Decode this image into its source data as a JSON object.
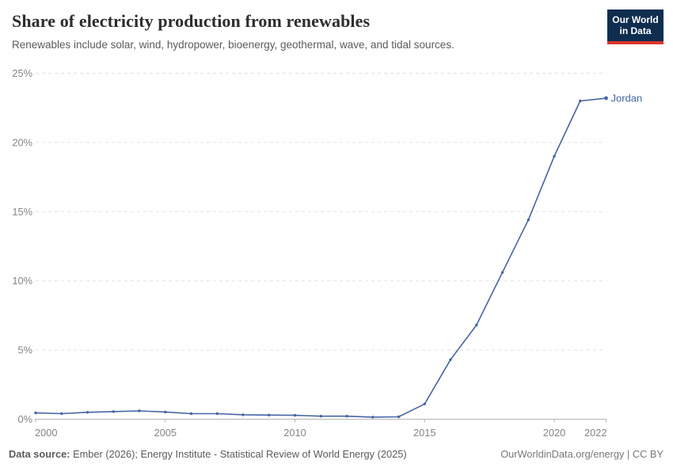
{
  "header": {
    "title": "Share of electricity production from renewables",
    "subtitle": "Renewables include solar, wind, hydropower, bioenergy, geothermal, wave, and tidal sources.",
    "logo": {
      "line1": "Our World",
      "line2": "in Data",
      "bg_color": "#0f2d4f",
      "stripe_color": "#dc352b"
    }
  },
  "chart_data": {
    "type": "line",
    "title": "Share of electricity production from renewables",
    "xlabel": "",
    "ylabel": "",
    "x": [
      2000,
      2001,
      2002,
      2003,
      2004,
      2005,
      2006,
      2007,
      2008,
      2009,
      2010,
      2011,
      2012,
      2013,
      2014,
      2015,
      2016,
      2017,
      2018,
      2019,
      2020,
      2021,
      2022
    ],
    "series": [
      {
        "name": "Jordan",
        "color": "#4664a4",
        "values": [
          0.45,
          0.4,
          0.5,
          0.55,
          0.6,
          0.52,
          0.4,
          0.4,
          0.32,
          0.3,
          0.28,
          0.22,
          0.22,
          0.15,
          0.17,
          1.1,
          4.3,
          6.8,
          10.6,
          14.4,
          19.0,
          23.0,
          23.2
        ]
      }
    ],
    "xlim": [
      2000,
      2022
    ],
    "ylim": [
      0,
      25
    ],
    "xticks": [
      2000,
      2005,
      2010,
      2015,
      2020,
      2022
    ],
    "yticks": [
      0,
      5,
      10,
      15,
      20,
      25
    ],
    "ytick_suffix": "%",
    "grid": "horizontal-dashed",
    "legend_position": "line-end-label"
  },
  "footer": {
    "datasource_label": "Data source:",
    "datasource_text": "Ember (2026); Energy Institute - Statistical Review of World Energy (2025)",
    "credit": "OurWorldinData.org/energy | CC BY"
  },
  "colors": {
    "line": "#4664a4",
    "axis_text": "#858585",
    "gridline": "#e2e2e2",
    "axis_line": "#b3b3b3",
    "title_text": "#2d2d2d",
    "subtitle_text": "#5b5b5b"
  }
}
